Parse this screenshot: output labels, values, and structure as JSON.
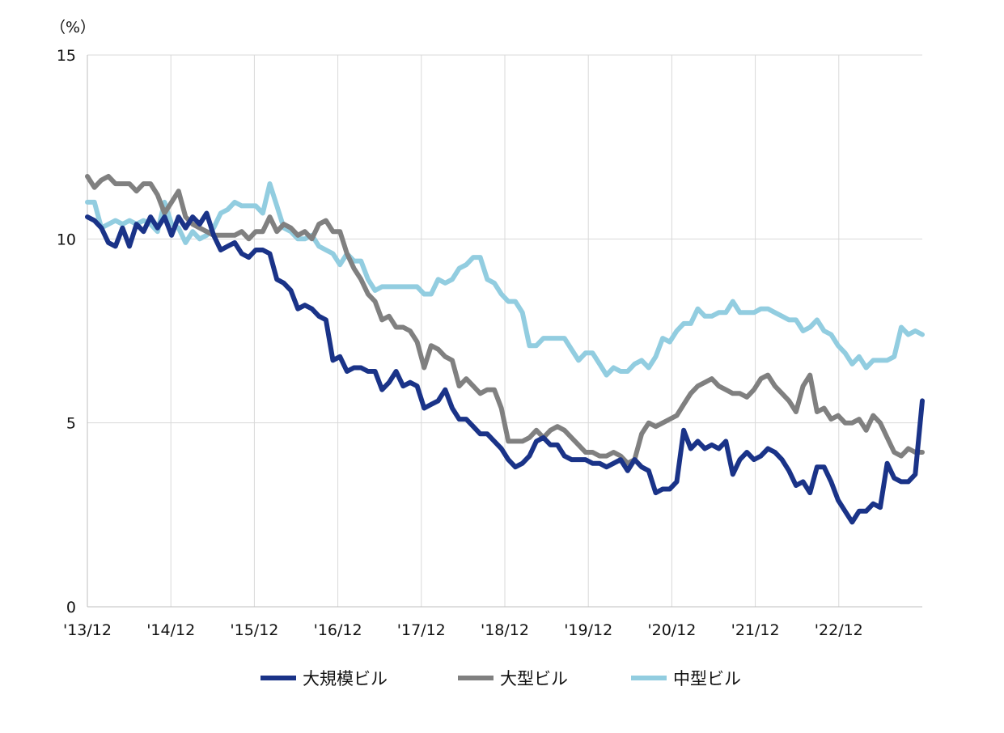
{
  "chart_data": {
    "type": "line",
    "unit_label": "（%）",
    "ylim": [
      0,
      15
    ],
    "y_ticks": [
      "0",
      "5",
      "10",
      "15"
    ],
    "x_ticks": [
      "'13/12",
      "'14/12",
      "'15/12",
      "'16/12",
      "'17/12",
      "'18/12",
      "'19/12",
      "'20/12",
      "'21/12",
      "'22/12"
    ],
    "grid": true,
    "legend_position": "bottom",
    "series": [
      {
        "name": "大規模ビル",
        "color": "#1a3388",
        "values": [
          10.6,
          10.5,
          10.3,
          9.9,
          9.8,
          10.3,
          9.8,
          10.4,
          10.2,
          10.6,
          10.3,
          10.6,
          10.1,
          10.6,
          10.3,
          10.6,
          10.4,
          10.7,
          10.1,
          9.7,
          9.8,
          9.9,
          9.6,
          9.5,
          9.7,
          9.7,
          9.6,
          8.9,
          8.8,
          8.6,
          8.1,
          8.2,
          8.1,
          7.9,
          7.8,
          6.7,
          6.8,
          6.4,
          6.5,
          6.5,
          6.4,
          6.4,
          5.9,
          6.1,
          6.4,
          6.0,
          6.1,
          6.0,
          5.4,
          5.5,
          5.6,
          5.9,
          5.4,
          5.1,
          5.1,
          4.9,
          4.7,
          4.7,
          4.5,
          4.3,
          4.0,
          3.8,
          3.9,
          4.1,
          4.5,
          4.6,
          4.4,
          4.4,
          4.1,
          4.0,
          4.0,
          4.0,
          3.9,
          3.9,
          3.8,
          3.9,
          4.0,
          3.7,
          4.0,
          3.8,
          3.7,
          3.1,
          3.2,
          3.2,
          3.4,
          4.8,
          4.3,
          4.5,
          4.3,
          4.4,
          4.3,
          4.5,
          3.6,
          4.0,
          4.2,
          4.0,
          4.1,
          4.3,
          4.2,
          4.0,
          3.7,
          3.3,
          3.4,
          3.1,
          3.8,
          3.8,
          3.4,
          2.9,
          2.6,
          2.3,
          2.6,
          2.6,
          2.8,
          2.7,
          3.9,
          3.5,
          3.4,
          3.4,
          3.6,
          5.6
        ]
      },
      {
        "name": "大型ビル",
        "color": "#808080",
        "values": [
          11.7,
          11.4,
          11.6,
          11.7,
          11.5,
          11.5,
          11.5,
          11.3,
          11.5,
          11.5,
          11.2,
          10.7,
          11.0,
          11.3,
          10.6,
          10.4,
          10.3,
          10.2,
          10.1,
          10.1,
          10.1,
          10.1,
          10.2,
          10.0,
          10.2,
          10.2,
          10.6,
          10.2,
          10.4,
          10.3,
          10.1,
          10.2,
          10.0,
          10.4,
          10.5,
          10.2,
          10.2,
          9.6,
          9.2,
          8.9,
          8.5,
          8.3,
          7.8,
          7.9,
          7.6,
          7.6,
          7.5,
          7.2,
          6.5,
          7.1,
          7.0,
          6.8,
          6.7,
          6.0,
          6.2,
          6.0,
          5.8,
          5.9,
          5.9,
          5.4,
          4.5,
          4.5,
          4.5,
          4.6,
          4.8,
          4.6,
          4.8,
          4.9,
          4.8,
          4.6,
          4.4,
          4.2,
          4.2,
          4.1,
          4.1,
          4.2,
          4.1,
          3.9,
          4.0,
          4.7,
          5.0,
          4.9,
          5.0,
          5.1,
          5.2,
          5.5,
          5.8,
          6.0,
          6.1,
          6.2,
          6.0,
          5.9,
          5.8,
          5.8,
          5.7,
          5.9,
          6.2,
          6.3,
          6.0,
          5.8,
          5.6,
          5.3,
          6.0,
          6.3,
          5.3,
          5.4,
          5.1,
          5.2,
          5.0,
          5.0,
          5.1,
          4.8,
          5.2,
          5.0,
          4.6,
          4.2,
          4.1,
          4.3,
          4.2,
          4.2
        ]
      },
      {
        "name": "中型ビル",
        "color": "#92cde0",
        "values": [
          11.0,
          11.0,
          10.3,
          10.4,
          10.5,
          10.4,
          10.5,
          10.4,
          10.5,
          10.4,
          10.2,
          11.0,
          10.4,
          10.3,
          9.9,
          10.2,
          10.0,
          10.1,
          10.3,
          10.7,
          10.8,
          11.0,
          10.9,
          10.9,
          10.9,
          10.7,
          11.5,
          10.9,
          10.3,
          10.2,
          10.0,
          10.0,
          10.1,
          9.8,
          9.7,
          9.6,
          9.3,
          9.6,
          9.4,
          9.4,
          8.9,
          8.6,
          8.7,
          8.7,
          8.7,
          8.7,
          8.7,
          8.7,
          8.5,
          8.5,
          8.9,
          8.8,
          8.9,
          9.2,
          9.3,
          9.5,
          9.5,
          8.9,
          8.8,
          8.5,
          8.3,
          8.3,
          8.0,
          7.1,
          7.1,
          7.3,
          7.3,
          7.3,
          7.3,
          7.0,
          6.7,
          6.9,
          6.9,
          6.6,
          6.3,
          6.5,
          6.4,
          6.4,
          6.6,
          6.7,
          6.5,
          6.8,
          7.3,
          7.2,
          7.5,
          7.7,
          7.7,
          8.1,
          7.9,
          7.9,
          8.0,
          8.0,
          8.3,
          8.0,
          8.0,
          8.0,
          8.1,
          8.1,
          8.0,
          7.9,
          7.8,
          7.8,
          7.5,
          7.6,
          7.8,
          7.5,
          7.4,
          7.1,
          6.9,
          6.6,
          6.8,
          6.5,
          6.7,
          6.7,
          6.7,
          6.8,
          7.6,
          7.4,
          7.5,
          7.4
        ]
      }
    ]
  }
}
